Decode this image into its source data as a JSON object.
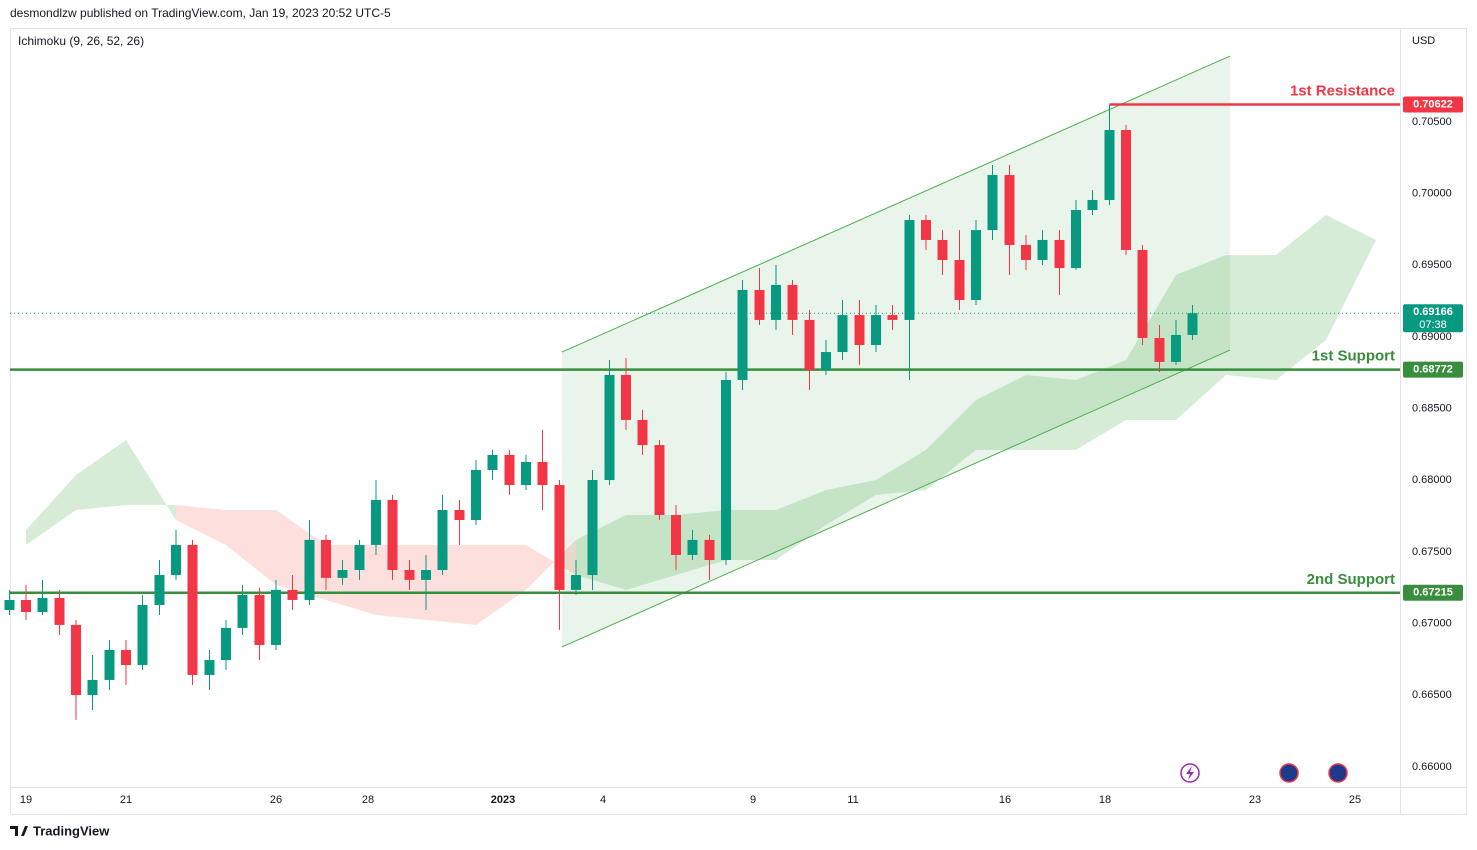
{
  "header": {
    "publisher": "desmondlzw published on TradingView.com, Jan 19, 2023 20:52 UTC-5",
    "indicator": "Ichimoku (9, 26, 52, 26)"
  },
  "footer": "TradingView",
  "chart_data": {
    "type": "candlestick",
    "currency": "USD",
    "up_color": "#089981",
    "down_color": "#f23645",
    "x": [
      -0.33,
      0,
      0.33,
      0.67,
      1,
      1.33,
      1.67,
      2,
      2.33,
      2.67,
      3,
      3.33,
      3.67,
      4,
      4.33,
      4.67,
      5,
      5.33,
      5.67,
      6,
      6.33,
      6.67,
      7,
      7.33,
      7.67,
      8,
      8.33,
      8.67,
      9,
      9.33,
      9.67,
      10,
      10.33,
      10.67,
      11,
      11.33,
      11.67,
      12,
      12.33,
      12.67,
      13,
      13.33,
      13.67,
      14,
      14.33,
      14.67,
      15,
      15.33,
      15.67,
      16,
      16.33,
      16.67,
      17,
      17.33,
      17.67,
      18,
      18.33,
      18.67,
      19,
      19.33,
      19.67,
      20,
      20.33,
      20.67,
      21,
      21.33,
      21.67,
      22,
      22.33,
      22.67,
      23,
      23.33
    ],
    "open": [
      0.67095,
      0.67165,
      0.67081,
      0.67179,
      0.66991,
      0.66502,
      0.66607,
      0.66816,
      0.66711,
      0.6713,
      0.67339,
      0.67549,
      0.66642,
      0.66746,
      0.6697,
      0.672,
      0.66851,
      0.67235,
      0.67165,
      0.67584,
      0.67319,
      0.67374,
      0.67549,
      0.67863,
      0.67374,
      0.67305,
      0.67374,
      0.67793,
      0.67723,
      0.68072,
      0.68177,
      0.67967,
      0.68128,
      0.67967,
      0.67235,
      0.67339,
      0.68002,
      0.68735,
      0.68421,
      0.68246,
      0.67758,
      0.67479,
      0.67584,
      0.67444,
      0.687,
      0.69328,
      0.69119,
      0.69363,
      0.69119,
      0.6877,
      0.68895,
      0.69153,
      0.68944,
      0.69153,
      0.69119,
      0.69816,
      0.69677,
      0.69537,
      0.69258,
      0.69746,
      0.7013,
      0.69642,
      0.69537,
      0.69677,
      0.69481,
      0.69886,
      0.69956,
      0.70444,
      0.69607,
      0.68993,
      0.68826,
      0.69014
    ],
    "high": [
      0.67235,
      0.6727,
      0.67305,
      0.67235,
      0.67025,
      0.66781,
      0.66886,
      0.66886,
      0.672,
      0.67444,
      0.67653,
      0.67584,
      0.66816,
      0.67025,
      0.6727,
      0.67249,
      0.67305,
      0.67339,
      0.67723,
      0.67619,
      0.67444,
      0.67584,
      0.68002,
      0.67898,
      0.67444,
      0.67479,
      0.67898,
      0.67863,
      0.68142,
      0.68212,
      0.68212,
      0.68177,
      0.68351,
      0.68002,
      0.67444,
      0.68072,
      0.68839,
      0.68853,
      0.68491,
      0.68281,
      0.67828,
      0.67653,
      0.67619,
      0.68756,
      0.69398,
      0.69481,
      0.69502,
      0.69398,
      0.69188,
      0.68979,
      0.69258,
      0.69258,
      0.69223,
      0.69223,
      0.69851,
      0.69851,
      0.69746,
      0.69746,
      0.69816,
      0.702,
      0.702,
      0.69712,
      0.69746,
      0.69746,
      0.69956,
      0.70026,
      0.70622,
      0.7048,
      0.69642,
      0.69084,
      0.69119,
      0.69223
    ],
    "low": [
      0.6706,
      0.67025,
      0.6706,
      0.66921,
      0.66328,
      0.66397,
      0.66537,
      0.66572,
      0.66677,
      0.6706,
      0.67305,
      0.66572,
      0.66537,
      0.66677,
      0.66921,
      0.66746,
      0.66816,
      0.67095,
      0.6713,
      0.67235,
      0.6727,
      0.67305,
      0.67479,
      0.67305,
      0.67235,
      0.67095,
      0.67339,
      0.67549,
      0.67688,
      0.68002,
      0.67898,
      0.67932,
      0.67793,
      0.66956,
      0.672,
      0.67235,
      0.67967,
      0.68351,
      0.68177,
      0.67723,
      0.67374,
      0.67444,
      0.67305,
      0.67409,
      0.6863,
      0.69084,
      0.69049,
      0.69014,
      0.6863,
      0.68735,
      0.68839,
      0.68805,
      0.68895,
      0.69049,
      0.687,
      0.69607,
      0.69433,
      0.69188,
      0.69223,
      0.69677,
      0.69433,
      0.69467,
      0.69502,
      0.69293,
      0.69467,
      0.69851,
      0.69921,
      0.69572,
      0.68944,
      0.68756,
      0.68805,
      0.68979
    ],
    "close": [
      0.67165,
      0.67081,
      0.67179,
      0.66991,
      0.66502,
      0.66607,
      0.66816,
      0.66711,
      0.6713,
      0.67339,
      0.67549,
      0.66642,
      0.66746,
      0.6697,
      0.672,
      0.66851,
      0.67235,
      0.67165,
      0.67584,
      0.67319,
      0.67374,
      0.67549,
      0.67863,
      0.67374,
      0.67305,
      0.67374,
      0.67793,
      0.67723,
      0.68072,
      0.68177,
      0.67967,
      0.68128,
      0.67967,
      0.67235,
      0.67339,
      0.68002,
      0.68735,
      0.68421,
      0.68246,
      0.67758,
      0.67479,
      0.67584,
      0.67444,
      0.687,
      0.69328,
      0.69119,
      0.69363,
      0.69119,
      0.6877,
      0.68895,
      0.69153,
      0.68944,
      0.69153,
      0.69119,
      0.69816,
      0.69677,
      0.69537,
      0.69258,
      0.69746,
      0.7013,
      0.69642,
      0.69537,
      0.69677,
      0.69481,
      0.69886,
      0.69956,
      0.70444,
      0.69607,
      0.68993,
      0.68826,
      0.69014,
      0.69166
    ],
    "countdown": "07:38",
    "xlim": [
      -0.32,
      27.48
    ],
    "ylim": [
      0.6586,
      0.71142
    ],
    "xticks": [
      {
        "value": 0,
        "label": "19"
      },
      {
        "value": 2,
        "label": "21"
      },
      {
        "value": 5,
        "label": "26"
      },
      {
        "value": 6.84,
        "label": "28"
      },
      {
        "value": 9.54,
        "label": "2023"
      },
      {
        "value": 11.54,
        "label": "4"
      },
      {
        "value": 14.54,
        "label": "9"
      },
      {
        "value": 16.54,
        "label": "11"
      },
      {
        "value": 19.58,
        "label": "16"
      },
      {
        "value": 21.58,
        "label": "18"
      },
      {
        "value": 24.58,
        "label": "23"
      },
      {
        "value": 26.58,
        "label": "25"
      }
    ],
    "yticks": [
      {
        "value": 0.66,
        "label": "0.66000"
      },
      {
        "value": 0.665,
        "label": "0.66500"
      },
      {
        "value": 0.67,
        "label": "0.67000"
      },
      {
        "value": 0.675,
        "label": "0.67500"
      },
      {
        "value": 0.68,
        "label": "0.68000"
      },
      {
        "value": 0.685,
        "label": "0.68500"
      },
      {
        "value": 0.69,
        "label": "0.69000"
      },
      {
        "value": 0.695,
        "label": "0.69500"
      },
      {
        "value": 0.7,
        "label": "0.70000"
      },
      {
        "value": 0.705,
        "label": "0.70500"
      }
    ],
    "grid": false,
    "ichimoku": {
      "x": [
        0,
        1,
        2,
        3,
        4,
        5,
        6,
        7,
        8,
        9,
        10,
        11,
        12,
        13,
        14,
        15,
        16,
        17,
        18,
        19,
        20,
        21,
        22,
        23,
        24,
        25,
        26,
        27
      ],
      "span_a": [
        0.67653,
        0.68037,
        0.68281,
        0.67723,
        0.67549,
        0.6727,
        0.67165,
        0.6706,
        0.67025,
        0.66991,
        0.67235,
        0.67584,
        0.67758,
        0.67758,
        0.67793,
        0.67793,
        0.67932,
        0.68002,
        0.68212,
        0.6856,
        0.68735,
        0.687,
        0.68839,
        0.69433,
        0.69572,
        0.69572,
        0.69851,
        0.69677
      ],
      "span_b": [
        0.67549,
        0.67793,
        0.67828,
        0.67828,
        0.67793,
        0.67793,
        0.67549,
        0.67549,
        0.67549,
        0.67549,
        0.67549,
        0.67339,
        0.67235,
        0.67339,
        0.67444,
        0.67444,
        0.67688,
        0.67898,
        0.67932,
        0.68212,
        0.68212,
        0.68212,
        0.68421,
        0.68421,
        0.68735,
        0.687,
        0.68979,
        0.69677
      ],
      "bull_color": "#c8e6c9",
      "bear_color": "#fcd4d2"
    },
    "channel": {
      "x": [
        10.72,
        24.08
      ],
      "upper": [
        0.68895,
        0.7096
      ],
      "lower": [
        0.66837,
        0.68909
      ],
      "color": "#4caf50"
    },
    "levels": [
      {
        "label": "1st Resistance",
        "value": 0.70622,
        "color": "#f23645"
      },
      {
        "label": "1st Support",
        "value": 0.68772,
        "color": "#388e3c"
      },
      {
        "label": "2nd Support",
        "value": 0.67215,
        "color": "#388e3c"
      }
    ]
  }
}
